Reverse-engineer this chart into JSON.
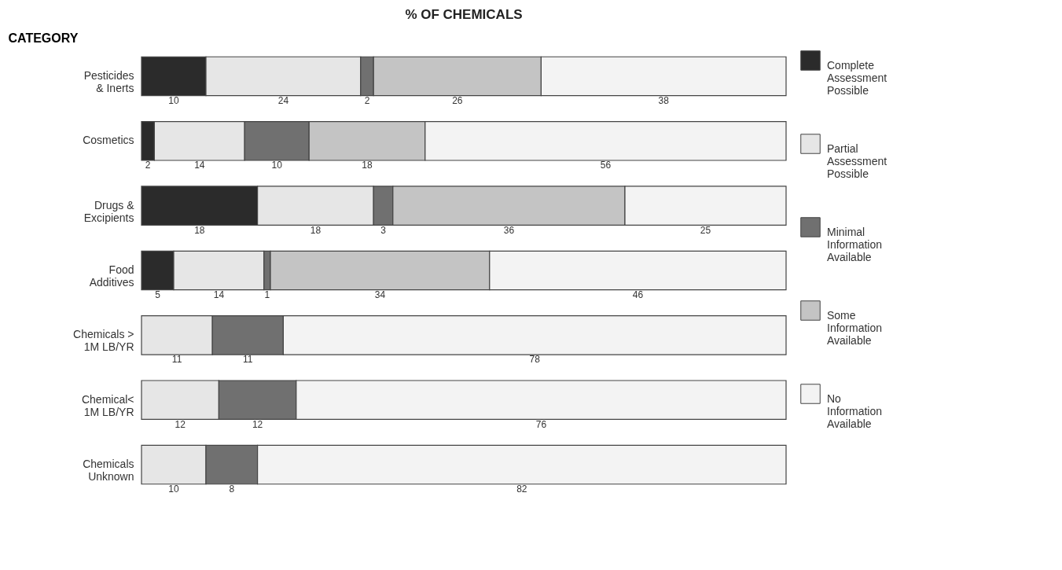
{
  "chart_data": {
    "type": "bar",
    "orientation": "horizontal",
    "stacked": true,
    "title": "% OF CHEMICALS",
    "ylabel": "CATEGORY",
    "categories": [
      "Pesticides\n& Inerts",
      "Cosmetics",
      "Drugs &\nExcipients",
      "Food\nAdditives",
      "Chemicals >\n1M LB/YR",
      "Chemical<\n1M LB/YR",
      "Chemicals\nUnknown"
    ],
    "series": [
      {
        "name": "Complete\nAssessment\nPossible",
        "color": "#2b2b2b",
        "values": [
          10,
          2,
          18,
          5,
          null,
          null,
          null
        ]
      },
      {
        "name": "Partial\nAssessment\nPossible",
        "color": "#e6e6e6",
        "values": [
          24,
          14,
          18,
          14,
          11,
          12,
          10
        ]
      },
      {
        "name": "Minimal\nInformation\nAvailable",
        "color": "#707070",
        "values": [
          2,
          10,
          3,
          1,
          11,
          12,
          8
        ]
      },
      {
        "name": "Some\nInformation\nAvailable",
        "color": "#c4c4c4",
        "values": [
          26,
          18,
          36,
          34,
          null,
          null,
          null
        ]
      },
      {
        "name": "No\nInformation\nAvailable",
        "color": "#f3f3f3",
        "values": [
          38,
          56,
          25,
          46,
          78,
          76,
          82
        ]
      }
    ],
    "tick_labels": "y",
    "data_labels": true,
    "legend": "right",
    "grid": false
  }
}
